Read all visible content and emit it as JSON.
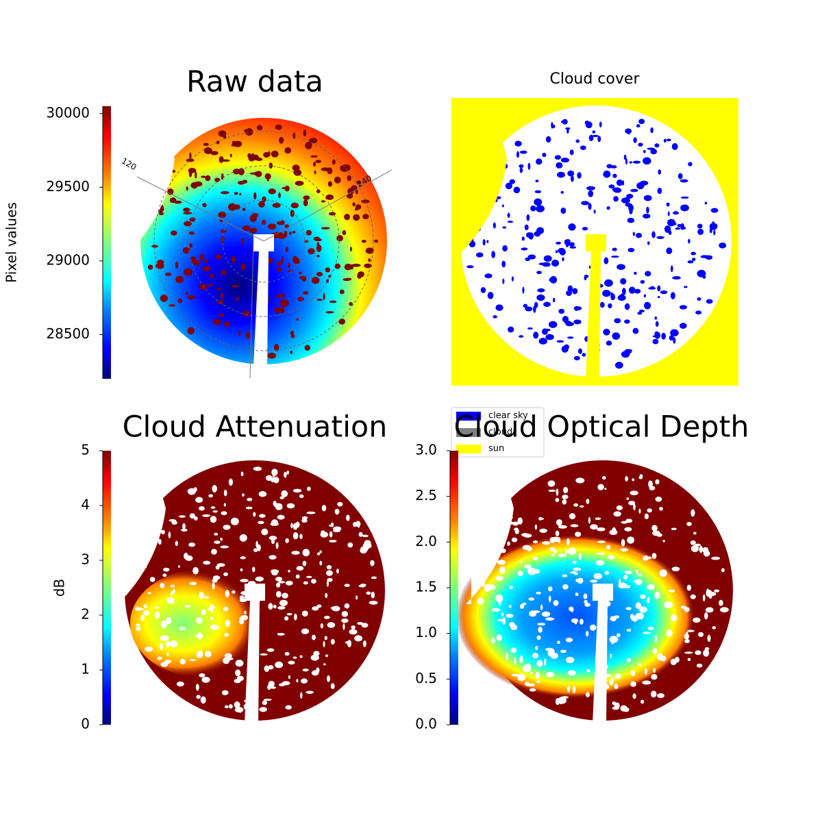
{
  "chart_data": [
    {
      "type": "image",
      "title": "Raw data",
      "ylabel": "Pixel values",
      "ylim": [
        28200,
        30050
      ],
      "yticks": [
        28500,
        29000,
        29500,
        30000
      ],
      "annotations": [
        "120",
        "240"
      ]
    },
    {
      "type": "image",
      "title": "Cloud cover",
      "legend": [
        {
          "name": "clear sky",
          "color": "#0000ff"
        },
        {
          "name": "cloud",
          "color": "#808080"
        },
        {
          "name": "sun",
          "color": "#ffff00"
        }
      ]
    },
    {
      "type": "image",
      "title": "Cloud Attenuation",
      "ylabel": "dB",
      "ylim": [
        0,
        5
      ],
      "yticks": [
        0,
        1,
        2,
        3,
        4,
        5
      ]
    },
    {
      "type": "image",
      "title": "Cloud Optical Depth",
      "ylim": [
        0,
        3
      ],
      "yticks": [
        {
          "value": 0,
          "label": "0.0"
        },
        {
          "value": 0.5,
          "label": "0.5"
        },
        {
          "value": 1,
          "label": "1.0"
        },
        {
          "value": 1.5,
          "label": "1.5"
        },
        {
          "value": 2,
          "label": "2.0"
        },
        {
          "value": 2.5,
          "label": "2.5"
        },
        {
          "value": 3,
          "label": "3.0"
        }
      ]
    }
  ]
}
